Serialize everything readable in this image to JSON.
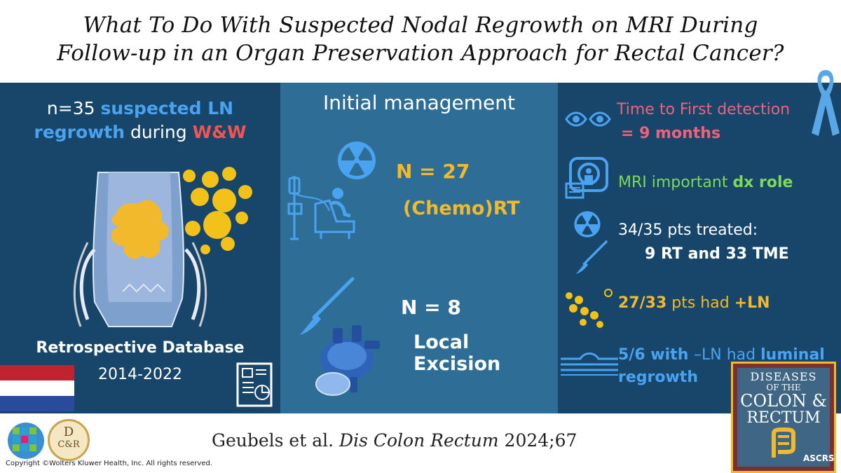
{
  "title_line1": "What To Do With Suspected Nodal Regrowth on MRI During",
  "title_line2": "Follow-up in an Organ Preservation Approach for Rectal Cancer?",
  "left": {
    "n_prefix": "n=35 ",
    "suspected_ln": "suspected LN",
    "regrowth": "regrowth",
    "during": " during ",
    "ww": "W&W",
    "database_label": "Retrospective Database",
    "years": "2014-2022"
  },
  "mid": {
    "heading": "Initial management",
    "n1": "N = 27",
    "treatment1": "(Chemo)RT",
    "n2": "N = 8",
    "treatment2": "Local Excision"
  },
  "right": {
    "detection_line1": "Time to First detection",
    "detection_line2": "= 9 months",
    "mri_text": "MRI important ",
    "mri_bold": "dx role",
    "treated_line1": "34/35 pts treated:",
    "treated_line2": "9 RT and 33 TME",
    "ln_ratio": "27/33",
    "ln_mid": " pts had ",
    "ln_pos": "+LN",
    "luminal_prefix": "5/6 with ",
    "luminal_neg": "–LN",
    "luminal_had": " had ",
    "luminal_word": "luminal",
    "luminal_line2": "regrowth"
  },
  "footer": {
    "citation_authors": "Geubels et al. ",
    "citation_journal": "Dis Colon Rectum",
    "citation_year": " 2024;67",
    "copyright": "Copyright ©Wolters Kluwer Health, Inc. All rights reserved.",
    "dcr_badge_top": "D",
    "dcr_badge_bottom": "C&R"
  },
  "journal_logo": {
    "line1": "DISEASES",
    "line2": "OF THE",
    "line3": "COLON &",
    "line4": "RECTUM",
    "org": "ASCRS"
  },
  "colors": {
    "panel_dark": "#17466a",
    "panel_mid": "#2e6e96",
    "yellow": "#f2b92d",
    "light_blue": "#4aa3f0",
    "red": "#f05454",
    "green": "#7ed957"
  }
}
